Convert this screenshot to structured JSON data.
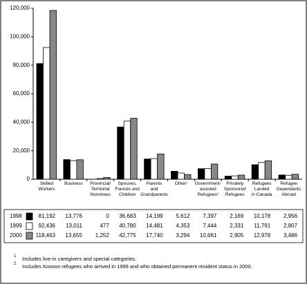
{
  "chart_data": {
    "type": "bar",
    "categories": [
      "Skilled\nWorkers",
      "Business",
      "Provincial/\nTerritorial\nNominees",
      "Spouses,\nFiancés and\nChildren",
      "Parents\nand\nGrandparents",
      "Other¹",
      "Government-\nassisted\nRefugees²",
      "Privately\nSponsored\nRefugees",
      "Refugees\nLanded\nin Canada",
      "Refugee\nDependants\nAbroad"
    ],
    "series": [
      {
        "name": "1998",
        "color": "#000000",
        "values": [
          81192,
          13776,
          0,
          36683,
          14199,
          5612,
          7397,
          2169,
          10178,
          2956
        ],
        "value_labels": [
          "81,192",
          "13,776",
          "0",
          "36,683",
          "14,199",
          "5,612",
          "7,397",
          "2,169",
          "10,178",
          "2,956"
        ]
      },
      {
        "name": "1999",
        "color": "#ffffff",
        "values": [
          92436,
          13011,
          477,
          40780,
          14481,
          4353,
          7444,
          2331,
          11791,
          2807
        ],
        "value_labels": [
          "92,436",
          "13,011",
          "477",
          "40,780",
          "14,481",
          "4,353",
          "7,444",
          "2,331",
          "11,791",
          "2,807"
        ]
      },
      {
        "name": "2000",
        "color": "#888888",
        "values": [
          118463,
          13655,
          1252,
          42775,
          17740,
          3294,
          10661,
          2905,
          12978,
          3486
        ],
        "value_labels": [
          "118,463",
          "13,655",
          "1,252",
          "42,775",
          "17,740",
          "3,294",
          "10,661",
          "2,905",
          "12,978",
          "3,486"
        ]
      }
    ],
    "ylim": [
      0,
      120000
    ],
    "yticks": [
      0,
      {
        "value": 20000,
        "label": "20,000"
      },
      {
        "value": 40000,
        "label": "40,000"
      },
      {
        "value": 60000,
        "label": "60,000"
      },
      {
        "value": 80000,
        "label": "80,000"
      },
      {
        "value": 100000,
        "label": "100,000"
      },
      {
        "value": 120000,
        "label": "120,000"
      }
    ],
    "grid": false,
    "footnotes": [
      {
        "marker": "1",
        "text": "Includes live-in caregivers and special categories."
      },
      {
        "marker": "2",
        "text": "Includes Kosovo refugees who arrived in 1999 and who obtained permanent resident status in 2000."
      }
    ]
  }
}
